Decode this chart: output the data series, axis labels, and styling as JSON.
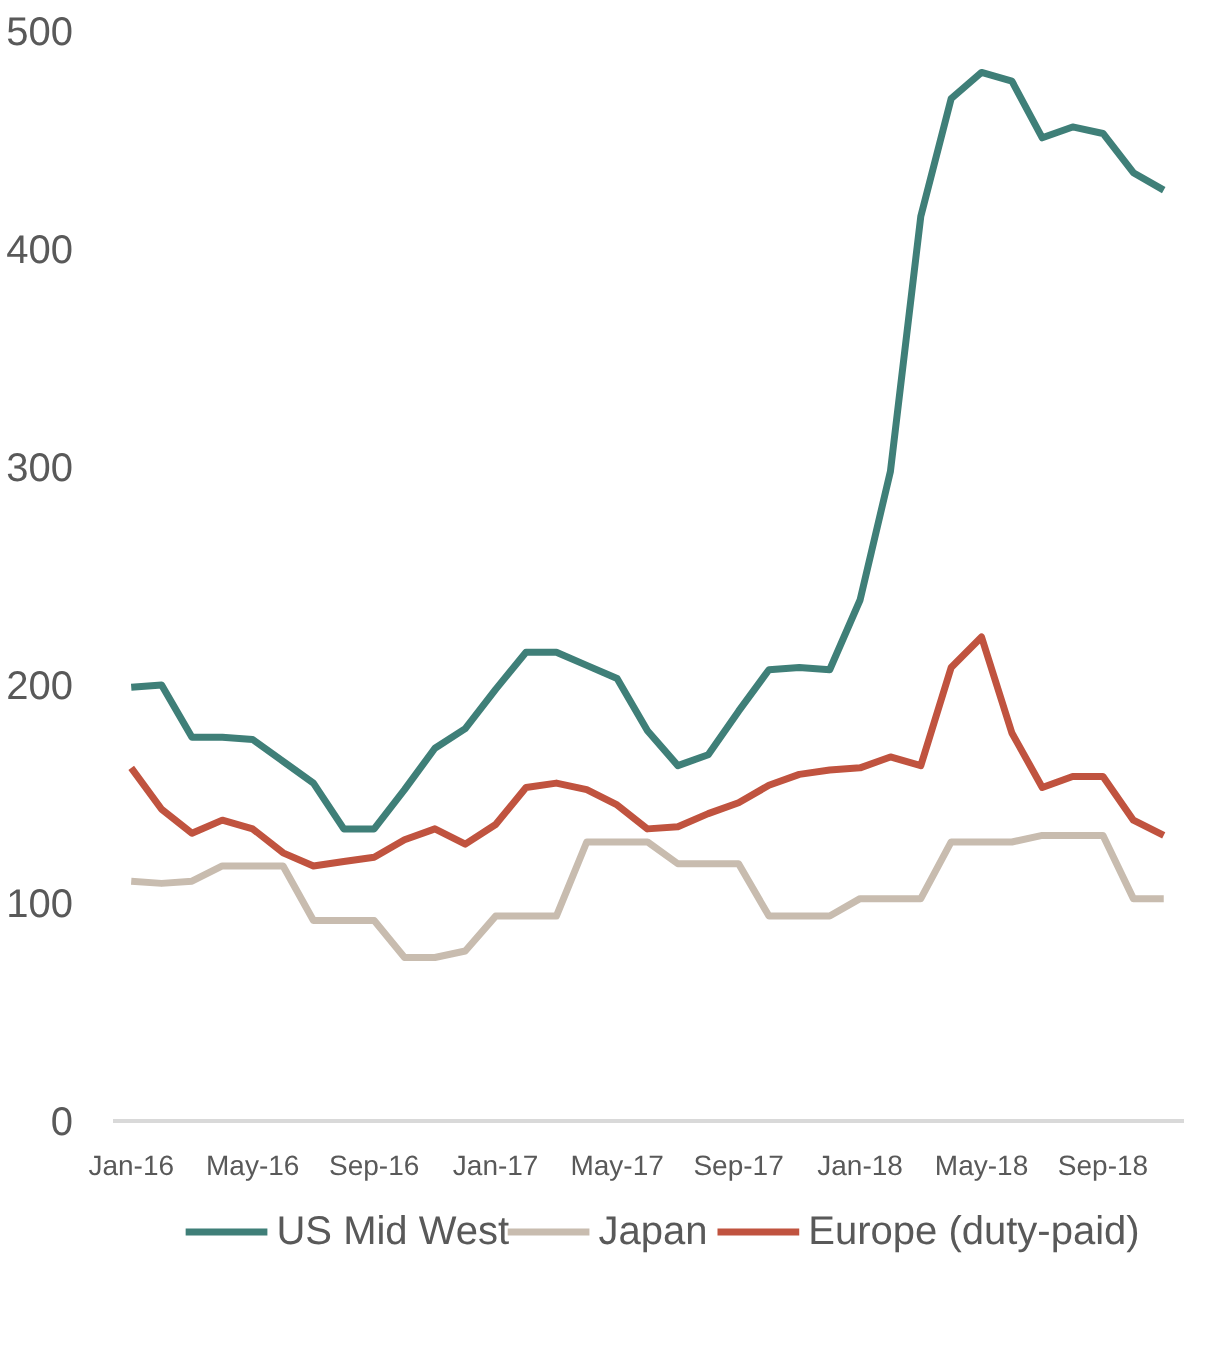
{
  "chart_data": {
    "type": "line",
    "categories": [
      "Jan-16",
      null,
      null,
      null,
      "May-16",
      null,
      null,
      null,
      "Sep-16",
      null,
      null,
      null,
      "Jan-17",
      null,
      null,
      null,
      "May-17",
      null,
      null,
      null,
      "Sep-17",
      null,
      null,
      null,
      "Jan-18",
      null,
      null,
      null,
      "May-18",
      null,
      null,
      null,
      "Sep-18",
      null,
      null
    ],
    "series": [
      {
        "name": "US Mid West",
        "color": "#3f7f78",
        "values": [
          199,
          200,
          176,
          176,
          175,
          165,
          155,
          134,
          134,
          152,
          171,
          180,
          198,
          215,
          215,
          209,
          203,
          179,
          163,
          168,
          188,
          207,
          208,
          207,
          239,
          298,
          415,
          469,
          481,
          477,
          451,
          456,
          453,
          435,
          427
        ]
      },
      {
        "name": "Japan",
        "color": "#c8bcaf",
        "values": [
          110,
          109,
          110,
          117,
          117,
          117,
          92,
          92,
          92,
          75,
          75,
          78,
          94,
          94,
          94,
          128,
          128,
          128,
          118,
          118,
          118,
          94,
          94,
          94,
          102,
          102,
          102,
          128,
          128,
          128,
          131,
          131,
          131,
          102,
          102
        ]
      },
      {
        "name": "Europe (duty-paid)",
        "color": "#c0533f",
        "values": [
          162,
          143,
          132,
          138,
          134,
          123,
          117,
          119,
          121,
          129,
          134,
          127,
          136,
          153,
          155,
          152,
          145,
          134,
          135,
          141,
          146,
          154,
          159,
          161,
          162,
          167,
          163,
          208,
          222,
          178,
          153,
          158,
          158,
          138,
          131
        ]
      }
    ],
    "ylim": [
      0,
      500
    ],
    "yticks": [
      0,
      100,
      200,
      300,
      400,
      500
    ],
    "grid": false,
    "legend": "bottom",
    "line_style": "solid",
    "marker": "none"
  }
}
